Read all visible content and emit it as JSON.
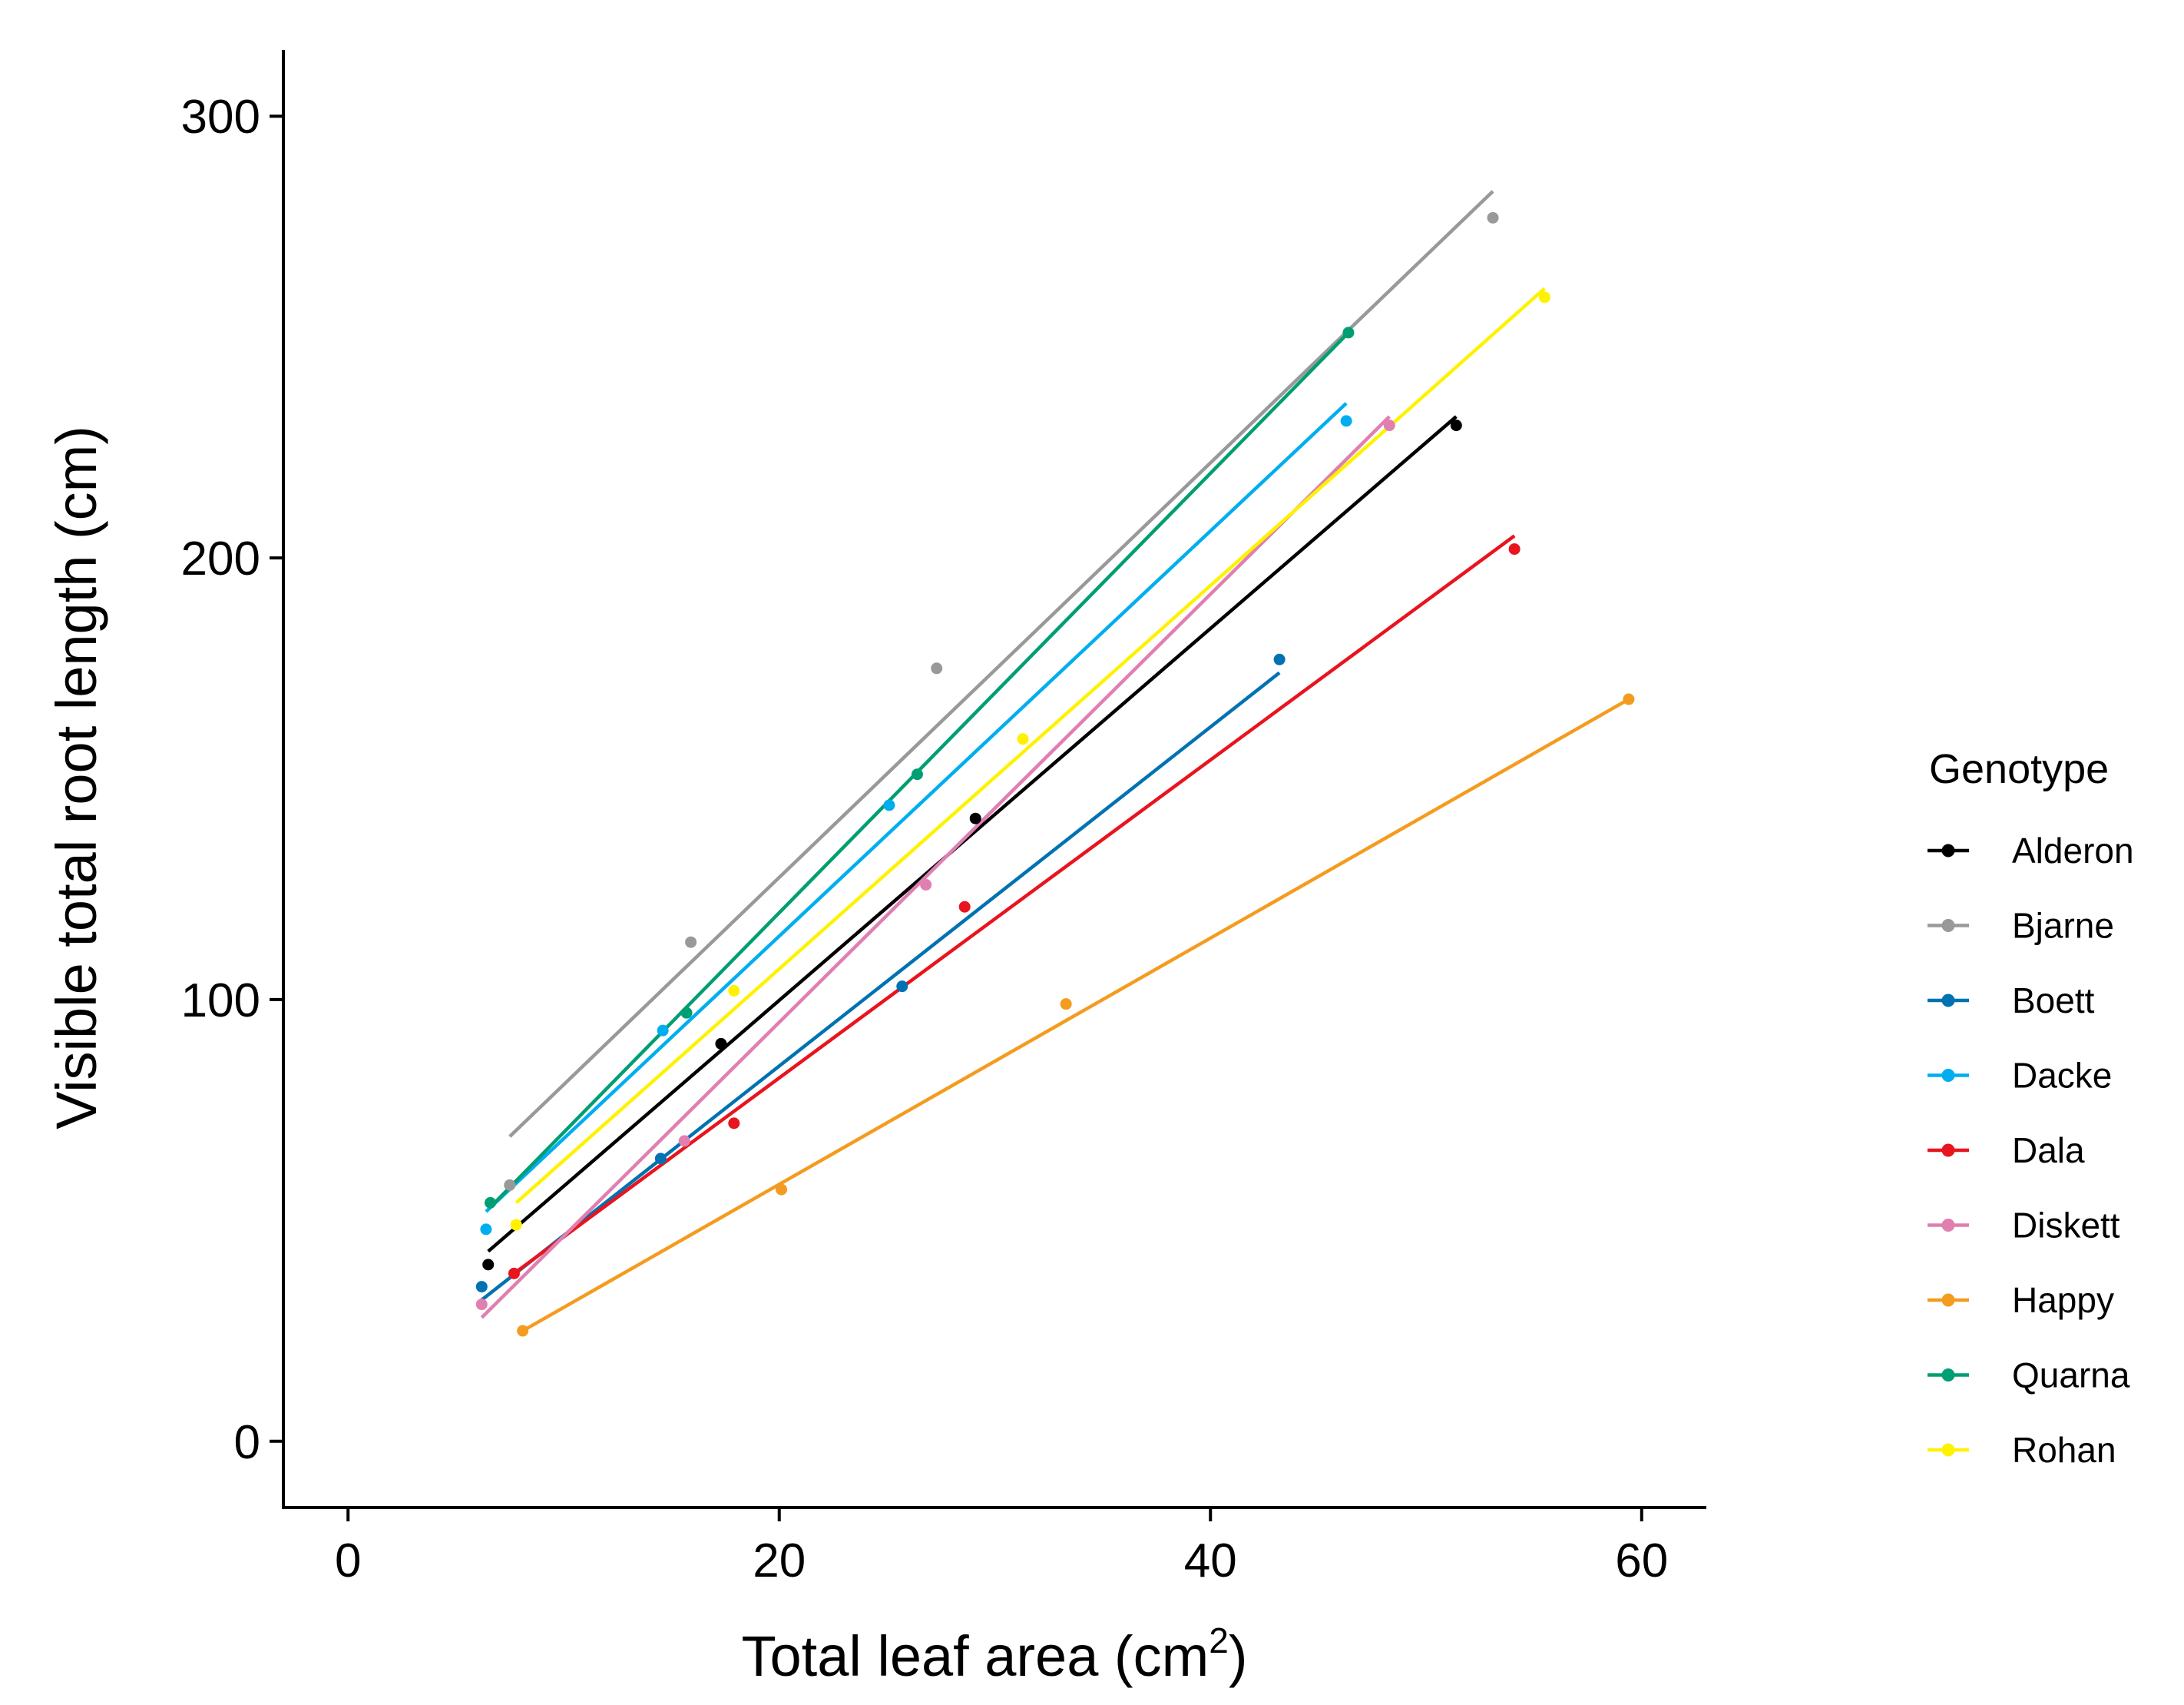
{
  "chart_data": {
    "type": "scatter",
    "title": "",
    "xlabel_main": "Total leaf area (cm",
    "xlabel_sup": "2",
    "xlabel_tail": ")",
    "ylabel": "Visible total root length (cm)",
    "xlim": [
      -3,
      63
    ],
    "ylim": [
      -15,
      315
    ],
    "x_ticks": [
      0,
      20,
      40,
      60
    ],
    "y_ticks": [
      0,
      100,
      200,
      300
    ],
    "x_tick_labels": [
      "0",
      "20",
      "40",
      "60"
    ],
    "y_tick_labels": [
      "0",
      "100",
      "200",
      "300"
    ],
    "legend_title": "Genotype",
    "series": [
      {
        "name": "Alderon",
        "color": "#000000",
        "points": [
          [
            6.5,
            40
          ],
          [
            17.3,
            90
          ],
          [
            29.1,
            141
          ],
          [
            51.4,
            230
          ]
        ],
        "fit": [
          [
            6.5,
            43
          ],
          [
            51.4,
            232
          ]
        ]
      },
      {
        "name": "Bjarne",
        "color": "#999999",
        "points": [
          [
            7.5,
            58
          ],
          [
            15.9,
            113
          ],
          [
            27.3,
            175
          ],
          [
            53.1,
            277
          ]
        ],
        "fit": [
          [
            7.5,
            69
          ],
          [
            53.1,
            283
          ]
        ]
      },
      {
        "name": "Boett",
        "color": "#0072B2",
        "points": [
          [
            6.2,
            35
          ],
          [
            14.5,
            64
          ],
          [
            25.7,
            103
          ],
          [
            43.2,
            177
          ]
        ],
        "fit": [
          [
            6.2,
            32
          ],
          [
            43.2,
            174
          ]
        ]
      },
      {
        "name": "Dacke",
        "color": "#00AEEF",
        "points": [
          [
            6.4,
            48
          ],
          [
            14.6,
            93
          ],
          [
            25.1,
            144
          ],
          [
            46.3,
            231
          ]
        ],
        "fit": [
          [
            6.4,
            52
          ],
          [
            46.3,
            235
          ]
        ]
      },
      {
        "name": "Dala",
        "color": "#E8141E",
        "points": [
          [
            7.7,
            38
          ],
          [
            17.9,
            72
          ],
          [
            28.6,
            121
          ],
          [
            54.1,
            202
          ]
        ],
        "fit": [
          [
            7.7,
            38
          ],
          [
            54.1,
            205
          ]
        ]
      },
      {
        "name": "Diskett",
        "color": "#E07FB0",
        "points": [
          [
            6.2,
            31
          ],
          [
            15.6,
            68
          ],
          [
            26.8,
            126
          ],
          [
            48.3,
            230
          ]
        ],
        "fit": [
          [
            6.2,
            28
          ],
          [
            48.3,
            232
          ]
        ]
      },
      {
        "name": "Happy",
        "color": "#F39C1F",
        "points": [
          [
            8.1,
            25
          ],
          [
            20.1,
            57
          ],
          [
            33.3,
            99
          ],
          [
            59.4,
            168
          ]
        ],
        "fit": [
          [
            8.1,
            25
          ],
          [
            59.4,
            168
          ]
        ]
      },
      {
        "name": "Quarna",
        "color": "#009E73",
        "points": [
          [
            6.6,
            54
          ],
          [
            15.7,
            97
          ],
          [
            26.4,
            151
          ],
          [
            46.4,
            251
          ]
        ],
        "fit": [
          [
            6.6,
            53
          ],
          [
            46.4,
            251
          ]
        ]
      },
      {
        "name": "Rohan",
        "color": "#FFF200",
        "points": [
          [
            7.8,
            49
          ],
          [
            17.9,
            102
          ],
          [
            31.3,
            159
          ],
          [
            55.5,
            259
          ]
        ],
        "fit": [
          [
            7.8,
            54
          ],
          [
            55.5,
            261
          ]
        ]
      }
    ]
  }
}
